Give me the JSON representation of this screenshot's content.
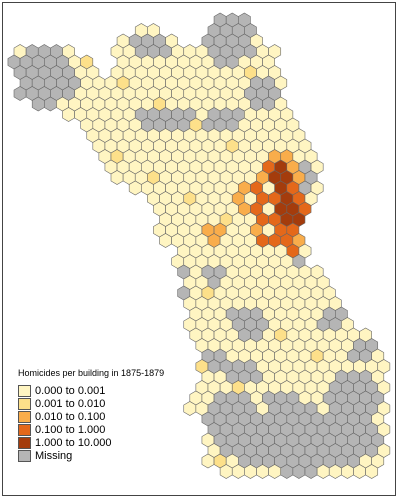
{
  "map": {
    "legend": {
      "title": "Homicides per building in 1875-1879",
      "items": [
        {
          "label": "0.000 to 0.001",
          "color": "#fff5c2"
        },
        {
          "label": "0.001 to 0.010",
          "color": "#fde08a"
        },
        {
          "label": "0.010 to 0.100",
          "color": "#f9ad4b"
        },
        {
          "label": "0.100 to 1.000",
          "color": "#e4681a"
        },
        {
          "label": "1.000 to 10.000",
          "color": "#a43c0c"
        },
        {
          "label": "Missing",
          "color": "#b5b5b5"
        }
      ]
    },
    "stroke_color": "#666666"
  }
}
